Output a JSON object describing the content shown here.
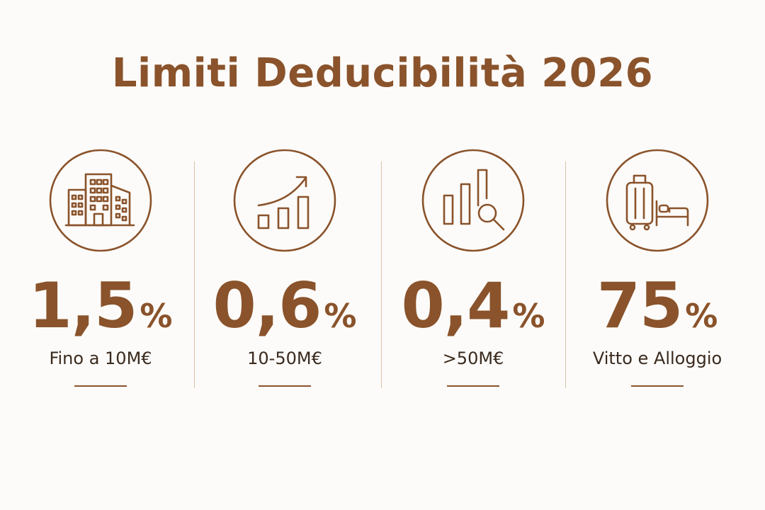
{
  "title": "Limiti Deducibilità 2026",
  "colors": {
    "background": "#fcfbf9",
    "accent": "#8a532b",
    "text": "#3a2a1e",
    "divider": "#d8c4ac"
  },
  "items": [
    {
      "icon": "office-building-icon",
      "value": "1,5",
      "unit": "%",
      "label": "Fino a 10M€"
    },
    {
      "icon": "growth-chart-icon",
      "value": "0,6",
      "unit": "%",
      "label": "10-50M€"
    },
    {
      "icon": "analytics-search-icon",
      "value": "0,4",
      "unit": "%",
      "label": ">50M€"
    },
    {
      "icon": "travel-lodging-icon",
      "value": "75",
      "unit": "%",
      "label": "Vitto e Alloggio"
    }
  ]
}
